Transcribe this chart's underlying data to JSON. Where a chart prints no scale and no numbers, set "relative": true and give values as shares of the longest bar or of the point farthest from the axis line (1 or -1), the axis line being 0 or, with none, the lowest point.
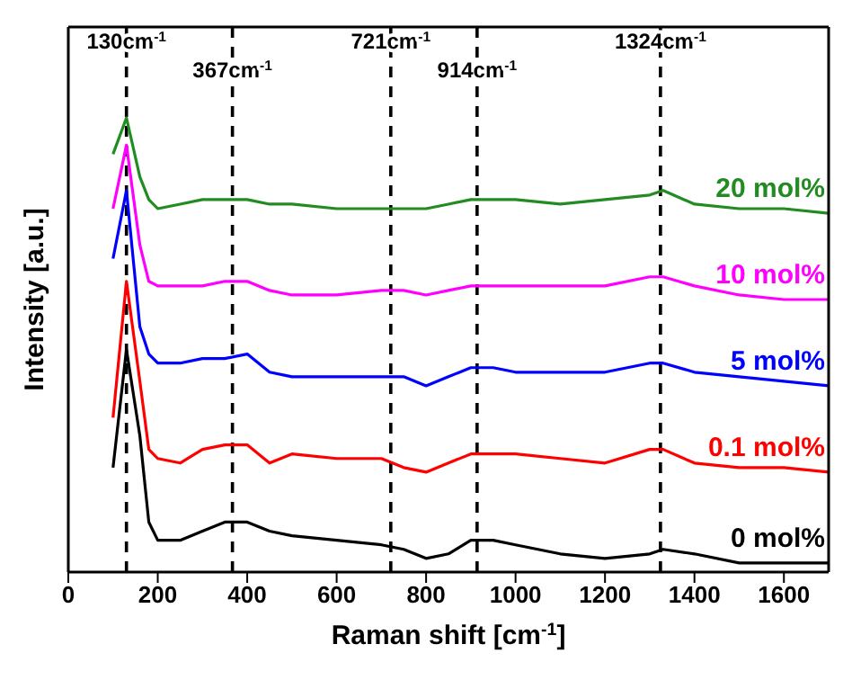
{
  "chart_data": {
    "type": "line",
    "relative": true,
    "xlabel": "Raman shift [cm$^{-1}$]",
    "ylabel": "Intensity [a.u.]",
    "xlim": [
      0,
      1700
    ],
    "xticks": [
      0,
      200,
      400,
      600,
      800,
      1000,
      1200,
      1400,
      1600
    ],
    "marker": "none",
    "x": [
      100,
      130,
      160,
      180,
      200,
      250,
      300,
      350,
      400,
      450,
      500,
      600,
      700,
      750,
      800,
      850,
      900,
      950,
      1000,
      1100,
      1200,
      1300,
      1330,
      1400,
      1500,
      1600,
      1700
    ],
    "series": [
      {
        "name": "0 mol%",
        "color": "#000000",
        "values": [
          0.23,
          0.49,
          0.3,
          0.11,
          0.07,
          0.07,
          0.09,
          0.11,
          0.11,
          0.09,
          0.08,
          0.07,
          0.06,
          0.05,
          0.03,
          0.04,
          0.07,
          0.07,
          0.06,
          0.04,
          0.03,
          0.04,
          0.05,
          0.04,
          0.02,
          0.02,
          0.02
        ]
      },
      {
        "name": "0.1 mol%",
        "color": "#ff0000",
        "values": [
          0.34,
          0.64,
          0.42,
          0.27,
          0.25,
          0.24,
          0.27,
          0.28,
          0.28,
          0.24,
          0.26,
          0.25,
          0.25,
          0.23,
          0.22,
          0.24,
          0.26,
          0.26,
          0.26,
          0.25,
          0.24,
          0.27,
          0.27,
          0.24,
          0.23,
          0.23,
          0.22
        ]
      },
      {
        "name": "5 mol%",
        "color": "#0000ff",
        "values": [
          0.69,
          0.84,
          0.54,
          0.48,
          0.46,
          0.46,
          0.47,
          0.47,
          0.48,
          0.44,
          0.43,
          0.43,
          0.43,
          0.43,
          0.41,
          0.43,
          0.45,
          0.45,
          0.44,
          0.44,
          0.44,
          0.46,
          0.46,
          0.44,
          0.43,
          0.42,
          0.41
        ]
      },
      {
        "name": "10 mol%",
        "color": "#ff00ff",
        "values": [
          0.8,
          0.94,
          0.72,
          0.64,
          0.63,
          0.63,
          0.63,
          0.64,
          0.64,
          0.62,
          0.61,
          0.61,
          0.62,
          0.62,
          0.61,
          0.62,
          0.63,
          0.63,
          0.63,
          0.63,
          0.63,
          0.65,
          0.65,
          0.63,
          0.61,
          0.6,
          0.6
        ]
      },
      {
        "name": "20 mol%",
        "color": "#228b22",
        "values": [
          0.92,
          1.0,
          0.87,
          0.82,
          0.8,
          0.81,
          0.82,
          0.82,
          0.82,
          0.81,
          0.81,
          0.8,
          0.8,
          0.8,
          0.8,
          0.81,
          0.82,
          0.82,
          0.82,
          0.81,
          0.82,
          0.83,
          0.84,
          0.81,
          0.8,
          0.8,
          0.79
        ]
      }
    ],
    "ref_lines": [
      {
        "axis": "x",
        "value": 130,
        "label": "130cm$^{-1}$",
        "color": "#000000",
        "line_style": "dashed"
      },
      {
        "axis": "x",
        "value": 367,
        "label": "367cm$^{-1}$",
        "color": "#000000",
        "line_style": "dashed"
      },
      {
        "axis": "x",
        "value": 721,
        "label": "721cm$^{-1}$",
        "color": "#000000",
        "line_style": "dashed"
      },
      {
        "axis": "x",
        "value": 914,
        "label": "914cm$^{-1}$",
        "color": "#000000",
        "line_style": "dashed"
      },
      {
        "axis": "x",
        "value": 1324,
        "label": "1324cm$^{-1}$",
        "color": "#000000",
        "line_style": "dashed"
      }
    ]
  }
}
